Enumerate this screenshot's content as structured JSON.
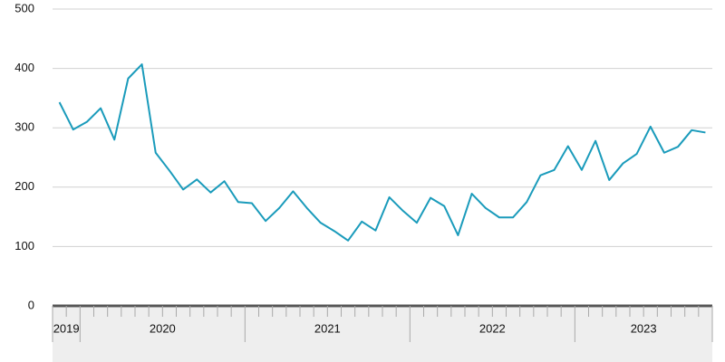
{
  "chart_data": {
    "type": "line",
    "categories": [
      "2019",
      null,
      "2020",
      null,
      null,
      null,
      null,
      null,
      null,
      null,
      null,
      null,
      null,
      null,
      "2021",
      null,
      null,
      null,
      null,
      null,
      null,
      null,
      null,
      null,
      null,
      null,
      "2022",
      null,
      null,
      null,
      null,
      null,
      null,
      null,
      null,
      null,
      null,
      null,
      "2023",
      null,
      null,
      null,
      null,
      null,
      null,
      null,
      null,
      null
    ],
    "series": [
      {
        "color": "#1a9bbb",
        "values": [
          343,
          297,
          310,
          333,
          280,
          383,
          407,
          258,
          228,
          196,
          213,
          191,
          210,
          175,
          173,
          143,
          165,
          193,
          165,
          140,
          126,
          110,
          142,
          127,
          183,
          160,
          140,
          182,
          168,
          119,
          189,
          165,
          149,
          149,
          175,
          220,
          229,
          269,
          229,
          278,
          212,
          240,
          256,
          302,
          258,
          268,
          296,
          292
        ]
      }
    ],
    "ylim": [
      0,
      500
    ],
    "yticks": [
      0,
      100,
      200,
      300,
      400,
      500
    ],
    "grid": true
  }
}
